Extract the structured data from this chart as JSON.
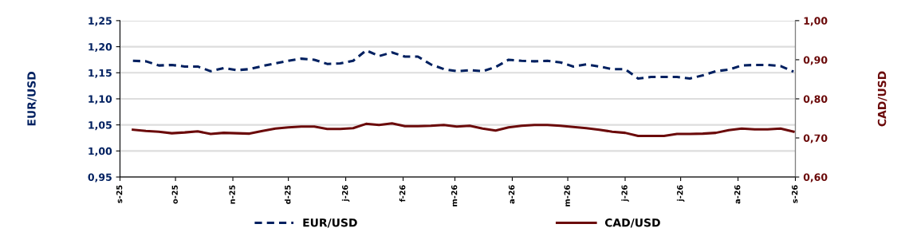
{
  "chart_data": {
    "type": "line",
    "ylabel": "EUR/USD",
    "y2label": "CAD/USD",
    "xlim": [
      "2025-09-01",
      "2026-09-01"
    ],
    "xticks": [
      {
        "value": "2025-09-01",
        "label": "s-25"
      },
      {
        "value": "2025-10-01",
        "label": "o-25"
      },
      {
        "value": "2025-11-01",
        "label": "n-25"
      },
      {
        "value": "2025-12-01",
        "label": "d-25"
      },
      {
        "value": "2026-01-01",
        "label": "j-26"
      },
      {
        "value": "2026-02-01",
        "label": "f-26"
      },
      {
        "value": "2026-03-01",
        "label": "m-26"
      },
      {
        "value": "2026-04-01",
        "label": "a-26"
      },
      {
        "value": "2026-05-01",
        "label": "m-26"
      },
      {
        "value": "2026-06-01",
        "label": "j-26"
      },
      {
        "value": "2026-07-01",
        "label": "j-26"
      },
      {
        "value": "2026-08-01",
        "label": "a-26"
      },
      {
        "value": "2026-09-01",
        "label": "s-26"
      }
    ],
    "ylim": [
      0.95,
      1.25
    ],
    "yticks": [
      {
        "value": 0.95,
        "label": "0,95"
      },
      {
        "value": 1.0,
        "label": "1,00"
      },
      {
        "value": 1.05,
        "label": "1,05"
      },
      {
        "value": 1.1,
        "label": "1,10"
      },
      {
        "value": 1.15,
        "label": "1,15"
      },
      {
        "value": 1.2,
        "label": "1,20"
      },
      {
        "value": 1.25,
        "label": "1,25"
      }
    ],
    "y2lim": [
      0.6,
      1.0
    ],
    "y2ticks": [
      {
        "value": 0.6,
        "label": "0,60"
      },
      {
        "value": 0.7,
        "label": "0,70"
      },
      {
        "value": 0.8,
        "label": "0,80"
      },
      {
        "value": 0.9,
        "label": "0,90"
      },
      {
        "value": 1.0,
        "label": "1,00"
      }
    ],
    "grid": "y",
    "legend": "bottom",
    "marker": "none",
    "x": [
      "2025-09-08",
      "2025-09-15",
      "2025-09-22",
      "2025-09-29",
      "2025-10-06",
      "2025-10-13",
      "2025-10-20",
      "2025-10-27",
      "2025-11-03",
      "2025-11-10",
      "2025-11-17",
      "2025-11-24",
      "2025-12-01",
      "2025-12-08",
      "2025-12-15",
      "2025-12-22",
      "2025-12-29",
      "2026-01-05",
      "2026-01-12",
      "2026-01-19",
      "2026-01-26",
      "2026-02-02",
      "2026-02-09",
      "2026-02-16",
      "2026-02-23",
      "2026-03-02",
      "2026-03-09",
      "2026-03-16",
      "2026-03-23",
      "2026-03-30",
      "2026-04-06",
      "2026-04-13",
      "2026-04-20",
      "2026-04-27",
      "2026-05-04",
      "2026-05-11",
      "2026-05-18",
      "2026-05-25",
      "2026-06-01",
      "2026-06-08",
      "2026-06-15",
      "2026-06-22",
      "2026-06-29",
      "2026-07-06",
      "2026-07-13",
      "2026-07-20",
      "2026-07-27",
      "2026-08-03",
      "2026-08-10",
      "2026-08-17",
      "2026-08-24",
      "2026-08-31"
    ],
    "series": [
      {
        "name": "EUR/USD",
        "color": "#002060",
        "line_style": "dashed",
        "values": [
          1.173,
          1.172,
          1.164,
          1.165,
          1.162,
          1.162,
          1.153,
          1.159,
          1.155,
          1.157,
          1.163,
          1.168,
          1.173,
          1.177,
          1.175,
          1.167,
          1.168,
          1.173,
          1.193,
          1.182,
          1.189,
          1.181,
          1.181,
          1.166,
          1.157,
          1.153,
          1.155,
          1.153,
          1.161,
          1.175,
          1.173,
          1.172,
          1.173,
          1.17,
          1.162,
          1.166,
          1.162,
          1.157,
          1.157,
          1.139,
          1.142,
          1.142,
          1.142,
          1.139,
          1.145,
          1.153,
          1.156,
          1.164,
          1.165,
          1.165,
          1.163,
          1.152
        ]
      },
      {
        "name": "CAD/USD",
        "color": "#6b0a0a",
        "line_style": "solid",
        "axis": "y2",
        "values": [
          0.721,
          0.718,
          0.716,
          0.712,
          0.714,
          0.717,
          0.71,
          0.713,
          0.712,
          0.711,
          0.718,
          0.724,
          0.727,
          0.729,
          0.729,
          0.723,
          0.723,
          0.725,
          0.736,
          0.733,
          0.737,
          0.73,
          0.73,
          0.731,
          0.733,
          0.729,
          0.731,
          0.724,
          0.719,
          0.727,
          0.731,
          0.733,
          0.733,
          0.731,
          0.728,
          0.725,
          0.721,
          0.716,
          0.713,
          0.705,
          0.705,
          0.705,
          0.71,
          0.71,
          0.711,
          0.713,
          0.72,
          0.724,
          0.722,
          0.722,
          0.724,
          0.716
        ]
      }
    ]
  }
}
